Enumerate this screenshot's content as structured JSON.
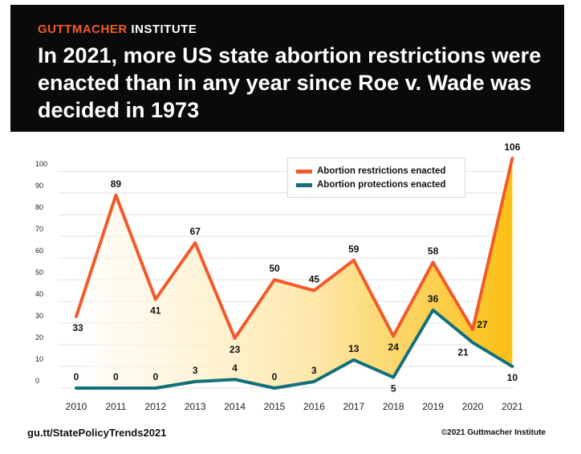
{
  "header": {
    "brand_accent": "GUTTMACHER",
    "brand_rest": " INSTITUTE",
    "title": "In 2021, more US state abortion restrictions were enacted than in any year since Roe v. Wade was decided in 1973"
  },
  "footer": {
    "link": "gu.tt/StatePolicyTrends2021",
    "copyright": "©2021 Guttmacher Institute"
  },
  "colors": {
    "restrictions": "#f25a29",
    "protections": "#13707a",
    "fill_strong": "#fbbf14"
  },
  "chart_data": {
    "type": "line",
    "title": "",
    "xlabel": "",
    "ylabel": "",
    "ylim": [
      0,
      106
    ],
    "x": [
      "2010",
      "2011",
      "2012",
      "2013",
      "2014",
      "2015",
      "2016",
      "2017",
      "2018",
      "2019",
      "2020",
      "2021"
    ],
    "yticks": [
      "0",
      "10",
      "20",
      "30",
      "40",
      "50",
      "60",
      "70",
      "80",
      "90",
      "100"
    ],
    "legend_position": "top-right",
    "series": [
      {
        "name": "Abortion restrictions enacted",
        "values": [
          33,
          89,
          41,
          67,
          23,
          50,
          45,
          59,
          24,
          58,
          27,
          106
        ]
      },
      {
        "name": "Abortion protections enacted",
        "values": [
          0,
          0,
          0,
          3,
          4,
          0,
          3,
          13,
          5,
          36,
          21,
          10
        ]
      }
    ]
  }
}
